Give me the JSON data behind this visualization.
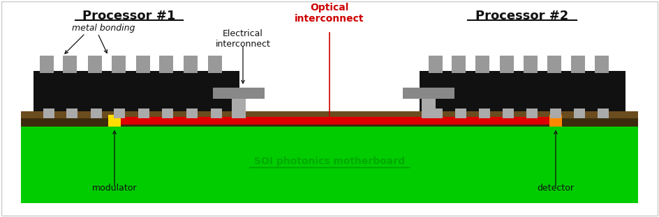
{
  "background_color": "#ffffff",
  "border_color": "#cccccc",
  "proc1_label": "Processor #1",
  "proc2_label": "Processor #2",
  "metal_bonding_label": "metal bonding",
  "electrical_interconnect_label": "Electrical\ninterconnect",
  "optical_interconnect_label": "Optical\ninterconnect",
  "soi_label": "SOI photonics motherboard",
  "modulator_label": "modulator",
  "detector_label": "detector",
  "colors": {
    "black": "#111111",
    "gray": "#888888",
    "light_gray": "#aaaaaa",
    "med_gray": "#999999",
    "green": "#00cc00",
    "red": "#dd0000",
    "orange": "#ff8800",
    "yellow": "#ffdd00",
    "brown": "#6b4c1e",
    "dark_brown": "#3d2b0e",
    "white": "#ffffff",
    "soi_green": "#00aa00",
    "label_red": "#cc0000"
  }
}
